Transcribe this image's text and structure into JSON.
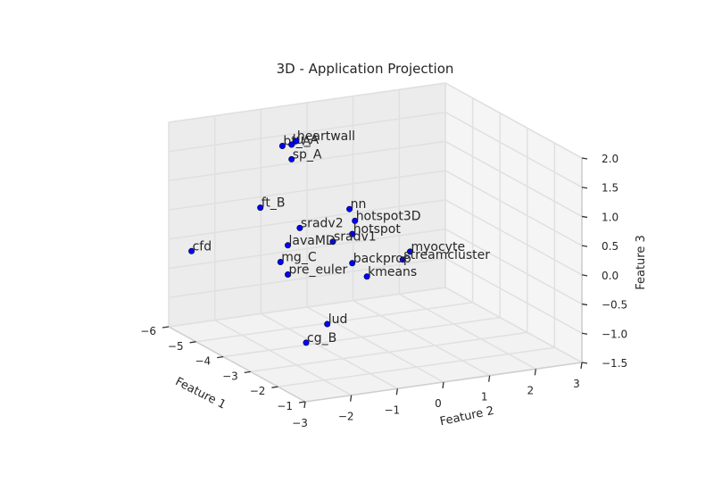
{
  "chart_data": {
    "type": "scatter",
    "title": "3D - Application Projection",
    "xlabel": "Feature 1",
    "ylabel": "Feature 2",
    "zlabel": "Feature 3",
    "xlim": [
      -6,
      -1
    ],
    "ylim": [
      -3,
      3
    ],
    "zlim": [
      -1.5,
      2.0
    ],
    "x_ticks": [
      -6,
      -5,
      -4,
      -3,
      -2,
      -1
    ],
    "y_ticks": [
      -3,
      -2,
      -1,
      0,
      1,
      2,
      3
    ],
    "z_ticks": [
      -1.5,
      -1.0,
      -0.5,
      0.0,
      0.5,
      1.0,
      1.5,
      2.0
    ],
    "x_tick_labels": [
      "−6",
      "−5",
      "−4",
      "−3",
      "−2",
      "−1"
    ],
    "y_tick_labels": [
      "−3",
      "−2",
      "−1",
      "0",
      "1",
      "2",
      "3"
    ],
    "z_tick_labels": [
      "−1.5",
      "−1.0",
      "−0.5",
      "0.0",
      "0.5",
      "1.0",
      "1.5",
      "2.0"
    ],
    "grid": true,
    "point_color": "#0000ff",
    "points": [
      {
        "label": "bt_A",
        "x": -4.2,
        "y": -1.6,
        "z": 1.9
      },
      {
        "label": "lu_A",
        "x": -4.2,
        "y": -1.4,
        "z": 1.9
      },
      {
        "label": "heartwall",
        "x": -4.2,
        "y": -1.3,
        "z": 1.95
      },
      {
        "label": "sp_A",
        "x": -4.2,
        "y": -1.4,
        "z": 1.65
      },
      {
        "label": "ft_B",
        "x": -4.5,
        "y": -1.9,
        "z": 0.8
      },
      {
        "label": "nn",
        "x": -3.6,
        "y": -0.5,
        "z": 0.85
      },
      {
        "label": "hotspot3D",
        "x": -3.4,
        "y": -0.5,
        "z": 0.7
      },
      {
        "label": "sradv2",
        "x": -3.9,
        "y": -1.4,
        "z": 0.55
      },
      {
        "label": "hotspot",
        "x": -3.5,
        "y": -0.5,
        "z": 0.45
      },
      {
        "label": "sradv1",
        "x": -3.7,
        "y": -0.8,
        "z": 0.3
      },
      {
        "label": "lavaMD",
        "x": -4.0,
        "y": -1.6,
        "z": 0.25
      },
      {
        "label": "myocyte",
        "x": -2.9,
        "y": 0.4,
        "z": 0.2
      },
      {
        "label": "streamcluster",
        "x": -3.0,
        "y": 0.3,
        "z": 0.05
      },
      {
        "label": "backprop",
        "x": -3.5,
        "y": -0.5,
        "z": -0.05
      },
      {
        "label": "mg_C",
        "x": -4.1,
        "y": -1.7,
        "z": -0.05
      },
      {
        "label": "kmeans",
        "x": -3.3,
        "y": -0.3,
        "z": -0.25
      },
      {
        "label": "pre_euler",
        "x": -4.0,
        "y": -1.6,
        "z": -0.25
      },
      {
        "label": "cfd",
        "x": -5.5,
        "y": -2.8,
        "z": -0.1
      },
      {
        "label": "lud",
        "x": -3.4,
        "y": -1.1,
        "z": -1.0
      },
      {
        "label": "cg_B",
        "x": -3.5,
        "y": -1.5,
        "z": -1.3
      }
    ]
  }
}
